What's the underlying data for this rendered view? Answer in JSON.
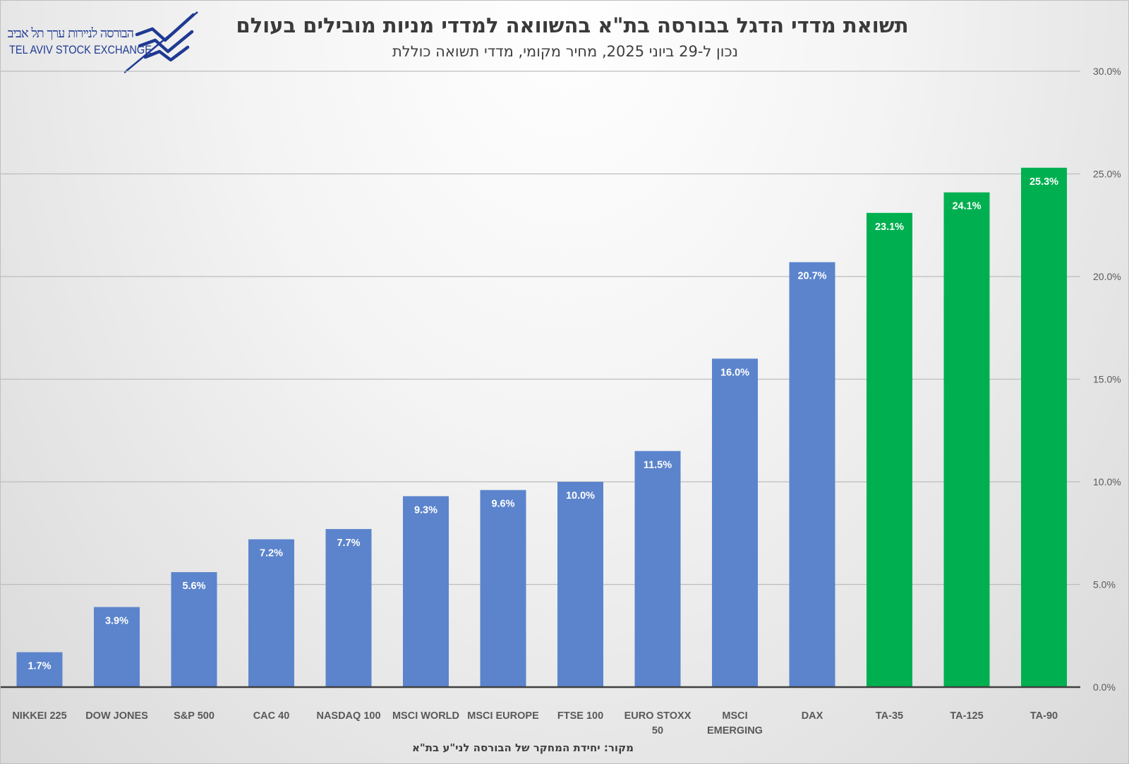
{
  "title": "תשואת מדדי הדגל בבורסה בת\"א בהשוואה למדדי מניות מובילים בעולם",
  "subtitle": "נכון ל-29 ביוני 2025, מחיר מקומי, מדדי תשואה כוללת",
  "source": "מקור: יחידת המחקר של הבורסה לני\"ע בת\"א",
  "logo": {
    "hebrew": "הבורסה לניירות ערך תל אביב",
    "english": "TEL AVIV STOCK EXCHANGE"
  },
  "colors": {
    "global_bars": "#5b84cc",
    "tase_bars": "#00b050",
    "logo": "#1f3a93"
  },
  "chart_data": {
    "type": "bar",
    "categories": [
      "NIKKEI 225",
      "DOW JONES",
      "S&P 500",
      "CAC 40",
      "NASDAQ 100",
      "MSCI WORLD",
      "MSCI EUROPE",
      "FTSE 100",
      "EURO STOXX 50",
      "MSCI EMERGING",
      "DAX",
      "TA-35",
      "TA-125",
      "TA-90"
    ],
    "category_lines": [
      [
        "NIKKEI 225"
      ],
      [
        "DOW JONES"
      ],
      [
        "S&P 500"
      ],
      [
        "CAC 40"
      ],
      [
        "NASDAQ 100"
      ],
      [
        "MSCI WORLD"
      ],
      [
        "MSCI EUROPE"
      ],
      [
        "FTSE 100"
      ],
      [
        "EURO STOXX",
        "50"
      ],
      [
        "MSCI",
        "EMERGING"
      ],
      [
        "DAX"
      ],
      [
        "TA-35"
      ],
      [
        "TA-125"
      ],
      [
        "TA-90"
      ]
    ],
    "values": [
      1.7,
      3.9,
      5.6,
      7.2,
      7.7,
      9.3,
      9.6,
      10.0,
      11.5,
      16.0,
      20.7,
      23.1,
      24.1,
      25.3
    ],
    "value_labels": [
      "1.7%",
      "3.9%",
      "5.6%",
      "7.2%",
      "7.7%",
      "9.3%",
      "9.6%",
      "10.0%",
      "11.5%",
      "16.0%",
      "20.7%",
      "23.1%",
      "24.1%",
      "25.3%"
    ],
    "highlighted": [
      "TA-35",
      "TA-125",
      "TA-90"
    ],
    "ylim": [
      0,
      30
    ],
    "yticks": [
      0,
      5,
      10,
      15,
      20,
      25,
      30
    ],
    "ytick_labels": [
      "0.0%",
      "5.0%",
      "10.0%",
      "15.0%",
      "20.0%",
      "25.0%",
      "30.0%"
    ],
    "y_axis_side": "right",
    "grid": true,
    "data_labels": "inside-top",
    "legend": "none"
  }
}
